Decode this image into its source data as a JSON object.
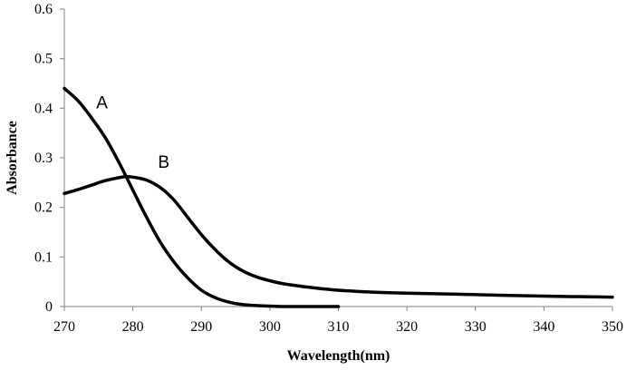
{
  "chart_data": {
    "type": "line",
    "title": "",
    "xlabel": "Wavelength(nm)",
    "ylabel": "Absorbance",
    "xlim": [
      270,
      350
    ],
    "ylim": [
      0,
      0.6
    ],
    "xticks": [
      270,
      280,
      290,
      300,
      310,
      320,
      330,
      340,
      350
    ],
    "xtick_labels": [
      "270",
      "280",
      "290",
      "300",
      "310",
      "320",
      "330",
      "340",
      "350"
    ],
    "yticks": [
      0,
      0.1,
      0.2,
      0.3,
      0.4,
      0.5,
      0.6
    ],
    "ytick_labels": [
      "0",
      "0.1",
      "0.2",
      "0.3",
      "0.4",
      "0.5",
      "0.6"
    ],
    "grid": false,
    "legend": "none",
    "series": [
      {
        "name": "A",
        "color": "#000000",
        "x": [
          270,
          272,
          274,
          276,
          278,
          280,
          282,
          284,
          286,
          288,
          290,
          292,
          294,
          296,
          298,
          300,
          302,
          305,
          310
        ],
        "y": [
          0.44,
          0.415,
          0.38,
          0.34,
          0.29,
          0.235,
          0.18,
          0.13,
          0.09,
          0.058,
          0.033,
          0.018,
          0.009,
          0.004,
          0.002,
          0.001,
          0.0,
          0.0,
          0.0
        ]
      },
      {
        "name": "B",
        "color": "#000000",
        "x": [
          270,
          272,
          274,
          276,
          278,
          279,
          280,
          282,
          284,
          286,
          288,
          290,
          292,
          294,
          296,
          298,
          300,
          302,
          305,
          310,
          315,
          320,
          330,
          340,
          350
        ],
        "y": [
          0.228,
          0.236,
          0.245,
          0.254,
          0.26,
          0.262,
          0.261,
          0.255,
          0.24,
          0.215,
          0.18,
          0.145,
          0.115,
          0.09,
          0.072,
          0.06,
          0.052,
          0.046,
          0.04,
          0.033,
          0.029,
          0.027,
          0.024,
          0.021,
          0.019
        ]
      }
    ],
    "annotations": [
      {
        "text": "A",
        "x": 275.5,
        "y": 0.4,
        "series": "A"
      },
      {
        "text": "B",
        "x": 284.5,
        "y": 0.28,
        "series": "B"
      }
    ]
  }
}
